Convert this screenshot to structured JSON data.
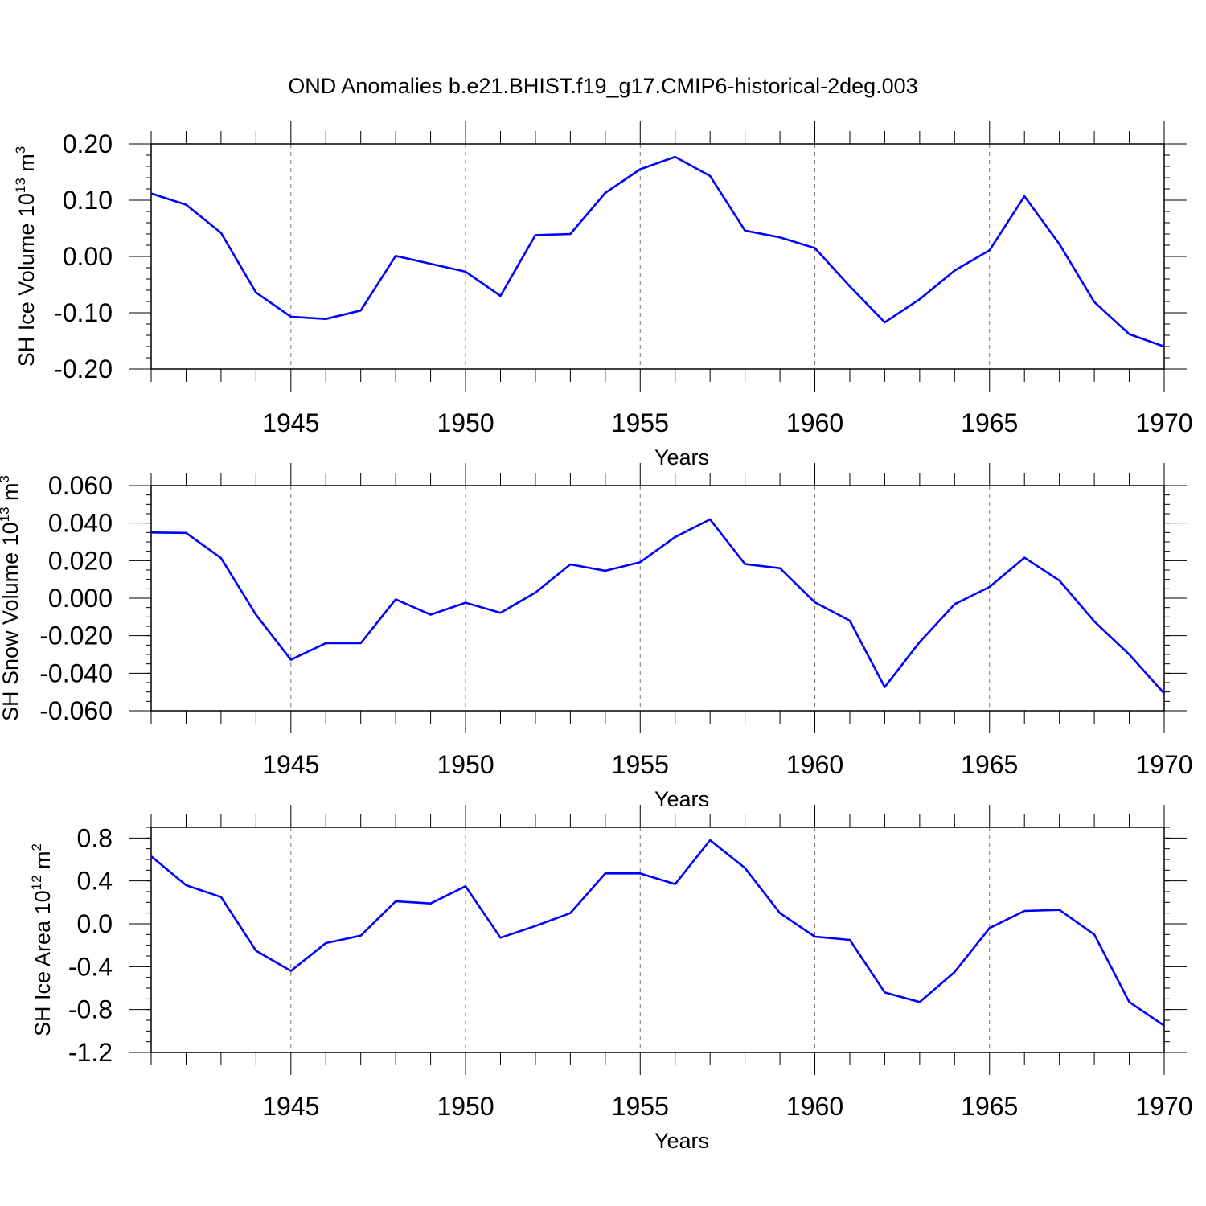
{
  "title": "OND Anomalies b.e21.BHIST.f19_g17.CMIP6-historical-2deg.003",
  "colors": {
    "line": "#0000ff",
    "axis": "#000000",
    "grid": "#777777"
  },
  "chart_data": [
    {
      "type": "line",
      "xlabel": "Years",
      "ylabel_main": "SH Ice Volume 10",
      "ylabel_sup": "13",
      "ylabel_unit": " m",
      "ylabel_unit_sup": "3",
      "xlim": [
        1941,
        1970
      ],
      "ylim": [
        -0.2,
        0.2
      ],
      "yticks": [
        -0.2,
        -0.1,
        0.0,
        0.1,
        0.2
      ],
      "ytick_labels": [
        "-0.20",
        "-0.10",
        "0.00",
        "0.10",
        "0.20"
      ],
      "yminor_step": 0.02,
      "xticks": [
        1945,
        1950,
        1955,
        1960,
        1965,
        1970
      ],
      "xtick_labels": [
        "1945",
        "1950",
        "1955",
        "1960",
        "1965",
        "1970"
      ],
      "x": [
        1941,
        1942,
        1943,
        1944,
        1945,
        1946,
        1947,
        1948,
        1949,
        1950,
        1951,
        1952,
        1953,
        1954,
        1955,
        1956,
        1957,
        1958,
        1959,
        1960,
        1961,
        1962,
        1963,
        1964,
        1965,
        1966,
        1967,
        1968,
        1969,
        1970
      ],
      "series": [
        {
          "name": "SH Ice Volume",
          "values": [
            0.112,
            0.092,
            0.042,
            -0.064,
            -0.107,
            -0.111,
            -0.096,
            0.001,
            -0.013,
            -0.027,
            -0.07,
            0.038,
            0.04,
            0.113,
            0.155,
            0.177,
            0.143,
            0.046,
            0.034,
            0.015,
            -0.053,
            -0.117,
            -0.076,
            -0.025,
            0.011,
            0.107,
            0.022,
            -0.081,
            -0.138,
            -0.16
          ]
        }
      ]
    },
    {
      "type": "line",
      "xlabel": "Years",
      "ylabel_main": "SH Snow Volume 10",
      "ylabel_sup": "13",
      "ylabel_unit": " m",
      "ylabel_unit_sup": "3",
      "xlim": [
        1941,
        1970
      ],
      "ylim": [
        -0.06,
        0.06
      ],
      "yticks": [
        -0.06,
        -0.04,
        -0.02,
        0.0,
        0.02,
        0.04,
        0.06
      ],
      "ytick_labels": [
        "-0.060",
        "-0.040",
        "-0.020",
        "0.000",
        "0.020",
        "0.040",
        "0.060"
      ],
      "yminor_step": 0.005,
      "xticks": [
        1945,
        1950,
        1955,
        1960,
        1965,
        1970
      ],
      "xtick_labels": [
        "1945",
        "1950",
        "1955",
        "1960",
        "1965",
        "1970"
      ],
      "x": [
        1941,
        1942,
        1943,
        1944,
        1945,
        1946,
        1947,
        1948,
        1949,
        1950,
        1951,
        1952,
        1953,
        1954,
        1955,
        1956,
        1957,
        1958,
        1959,
        1960,
        1961,
        1962,
        1963,
        1964,
        1965,
        1966,
        1967,
        1968,
        1969,
        1970
      ],
      "series": [
        {
          "name": "SH Snow Volume",
          "values": [
            0.035,
            0.0348,
            0.0214,
            -0.0088,
            -0.0328,
            -0.024,
            -0.024,
            -0.0006,
            -0.0088,
            -0.0024,
            -0.0078,
            0.003,
            0.018,
            0.0146,
            0.0192,
            0.0326,
            0.042,
            0.0182,
            0.016,
            -0.0022,
            -0.012,
            -0.0474,
            -0.0234,
            -0.0032,
            0.006,
            0.0216,
            0.0094,
            -0.0124,
            -0.03,
            -0.0508
          ]
        }
      ]
    },
    {
      "type": "line",
      "xlabel": "Years",
      "ylabel_main": "SH Ice Area 10",
      "ylabel_sup": "12",
      "ylabel_unit": " m",
      "ylabel_unit_sup": "2",
      "xlim": [
        1941,
        1970
      ],
      "ylim": [
        -1.2,
        0.9
      ],
      "yticks": [
        -1.2,
        -0.8,
        -0.4,
        0.0,
        0.4,
        0.8
      ],
      "ytick_labels": [
        "-1.2",
        "-0.8",
        "-0.4",
        "0.0",
        "0.4",
        "0.8"
      ],
      "yminor_step": 0.1,
      "xticks": [
        1945,
        1950,
        1955,
        1960,
        1965,
        1970
      ],
      "xtick_labels": [
        "1945",
        "1950",
        "1955",
        "1960",
        "1965",
        "1970"
      ],
      "x": [
        1941,
        1942,
        1943,
        1944,
        1945,
        1946,
        1947,
        1948,
        1949,
        1950,
        1951,
        1952,
        1953,
        1954,
        1955,
        1956,
        1957,
        1958,
        1959,
        1960,
        1961,
        1962,
        1963,
        1964,
        1965,
        1966,
        1967,
        1968,
        1969,
        1970
      ],
      "series": [
        {
          "name": "SH Ice Area",
          "values": [
            0.63,
            0.36,
            0.25,
            -0.25,
            -0.44,
            -0.18,
            -0.11,
            0.21,
            0.19,
            0.35,
            -0.13,
            -0.02,
            0.1,
            0.47,
            0.47,
            0.37,
            0.78,
            0.52,
            0.1,
            -0.12,
            -0.15,
            -0.64,
            -0.73,
            -0.45,
            -0.04,
            0.12,
            0.13,
            -0.1,
            -0.73,
            -0.95
          ]
        }
      ]
    }
  ]
}
